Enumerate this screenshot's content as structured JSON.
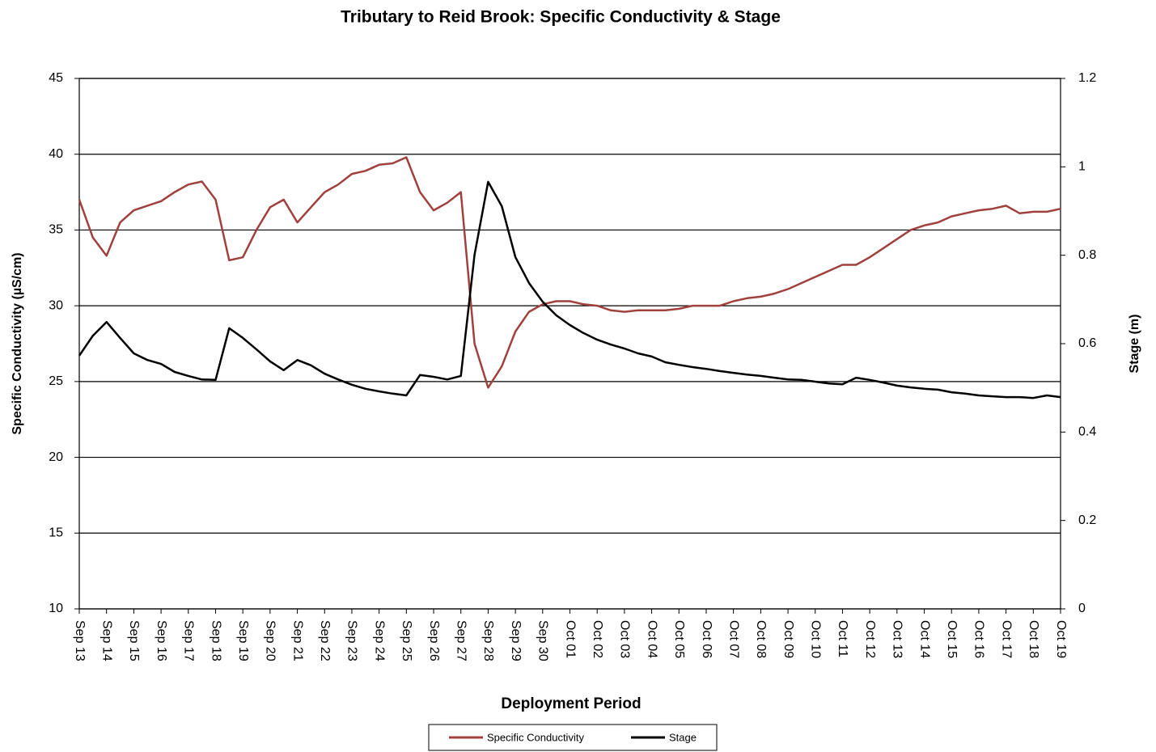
{
  "chart_data": {
    "type": "line",
    "title": "Tributary to Reid Brook: Specific Conductivity & Stage",
    "x_label": "Deployment Period",
    "y_label": "Specific Conductivity  (µS/cm)",
    "y2_label": "Stage (m)",
    "categories": [
      "Sep 13",
      null,
      "Sep 14",
      null,
      "Sep 15",
      null,
      "Sep 16",
      null,
      "Sep 17",
      null,
      "Sep 18",
      null,
      "Sep 19",
      null,
      "Sep 20",
      null,
      "Sep 21",
      null,
      "Sep 22",
      null,
      "Sep 23",
      null,
      "Sep 24",
      null,
      "Sep 25",
      null,
      "Sep 26",
      null,
      "Sep 27",
      null,
      "Sep 28",
      null,
      "Sep 29",
      null,
      "Sep 30",
      null,
      "Oct 01",
      null,
      "Oct 02",
      null,
      "Oct 03",
      null,
      "Oct 04",
      null,
      "Oct 05",
      null,
      "Oct 06",
      null,
      "Oct 07",
      null,
      "Oct 08",
      null,
      "Oct 09",
      null,
      "Oct 10",
      null,
      "Oct 11",
      null,
      "Oct 12",
      null,
      "Oct 13",
      null,
      "Oct 14",
      null,
      "Oct 15",
      null,
      "Oct 16",
      null,
      "Oct 17",
      null,
      "Oct 18",
      null,
      "Oct 19"
    ],
    "series": [
      {
        "name": "Specific Conductivity",
        "color": "#a0413d",
        "values": [
          37,
          34.5,
          33.3,
          35.5,
          36.3,
          36.6,
          36.9,
          37.5,
          38.0,
          38.2,
          37.0,
          33.0,
          33.2,
          35.0,
          36.5,
          37.0,
          35.5,
          36.5,
          37.5,
          38.0,
          38.7,
          38.9,
          39.3,
          39.4,
          39.8,
          37.5,
          36.3,
          36.8,
          37.5,
          27.5,
          24.6,
          26.0,
          28.3,
          29.6,
          30.1,
          30.3,
          30.3,
          30.1,
          30.0,
          29.7,
          29.6,
          29.7,
          29.7,
          29.7,
          29.8,
          30.0,
          30.0,
          30.0,
          30.3,
          30.5,
          30.6,
          30.8,
          31.1,
          31.5,
          31.9,
          32.3,
          32.7,
          32.7,
          33.2,
          33.8,
          34.4,
          35.0,
          35.3,
          35.5,
          35.9,
          36.1,
          36.3,
          36.4,
          36.6,
          36.1,
          36.2,
          36.2,
          36.4
        ]
      },
      {
        "name": "Stage",
        "color": "#000000",
        "axis": "y2",
        "values": [
          0.573,
          0.618,
          0.649,
          0.613,
          0.578,
          0.563,
          0.554,
          0.536,
          0.527,
          0.519,
          0.518,
          0.635,
          0.613,
          0.587,
          0.56,
          0.54,
          0.563,
          0.551,
          0.532,
          0.519,
          0.507,
          0.498,
          0.492,
          0.487,
          0.483,
          0.529,
          0.525,
          0.519,
          0.527,
          0.801,
          0.966,
          0.911,
          0.796,
          0.737,
          0.695,
          0.664,
          0.642,
          0.624,
          0.609,
          0.598,
          0.589,
          0.578,
          0.571,
          0.558,
          0.552,
          0.547,
          0.543,
          0.538,
          0.534,
          0.53,
          0.527,
          0.523,
          0.519,
          0.518,
          0.514,
          0.51,
          0.508,
          0.523,
          0.518,
          0.512,
          0.505,
          0.501,
          0.498,
          0.496,
          0.49,
          0.487,
          0.483,
          0.481,
          0.479,
          0.479,
          0.477,
          0.483,
          0.479
        ]
      }
    ],
    "ylim": [
      10,
      45
    ],
    "yticks": [
      10,
      15,
      20,
      25,
      30,
      35,
      40,
      45
    ],
    "y2lim": [
      0,
      1.2
    ],
    "y2ticks": [
      0,
      0.2,
      0.4,
      0.6,
      0.8,
      1,
      1.2
    ],
    "grid": true,
    "legend": "bottom"
  }
}
